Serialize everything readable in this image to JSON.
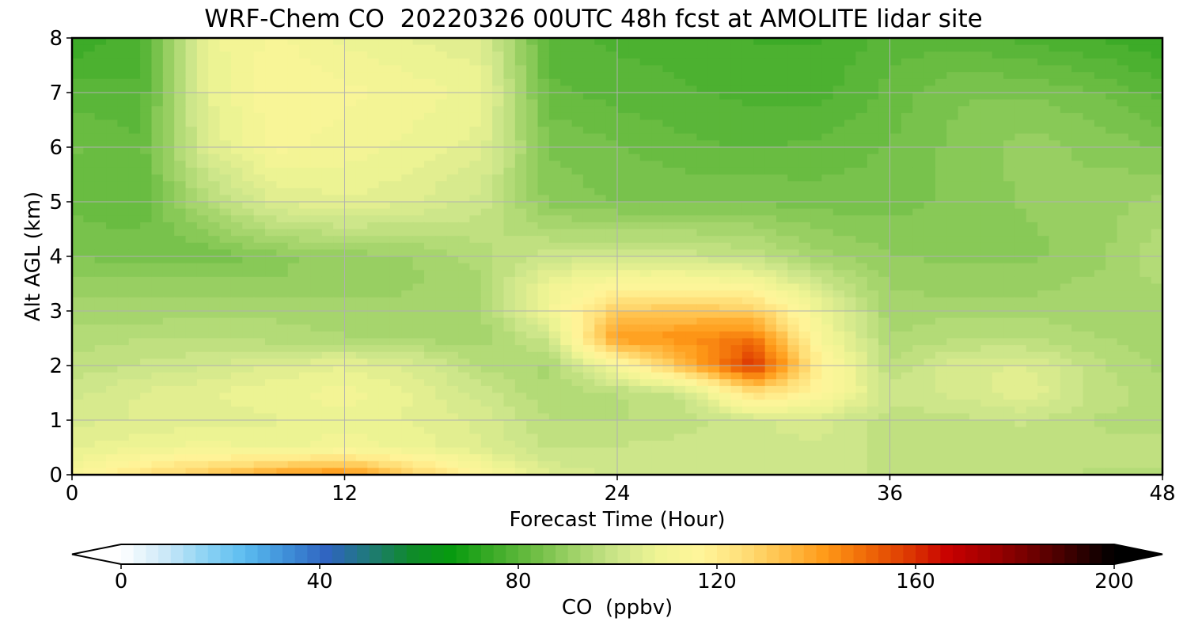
{
  "chart_data": {
    "type": "heatmap",
    "title": "WRF-Chem CO  20220326 00UTC 48h fcst at AMOLITE lidar site",
    "xlabel": "Forecast Time (Hour)",
    "ylabel": "Alt AGL (km)",
    "xlim": [
      0,
      48
    ],
    "ylim": [
      0,
      8
    ],
    "x_ticks": [
      "0",
      "12",
      "24",
      "36",
      "48"
    ],
    "y_ticks": [
      "0",
      "1",
      "2",
      "3",
      "4",
      "5",
      "6",
      "7",
      "8"
    ],
    "grid": true,
    "colorbar": {
      "label": "CO  (ppbv)",
      "range": [
        0,
        200
      ],
      "ticks": [
        "0",
        "40",
        "80",
        "120",
        "160",
        "200"
      ],
      "extend": "both",
      "colors": [
        "#ffffff",
        "#cfeaf8",
        "#8fd4f4",
        "#5bbcf0",
        "#3f8fd8",
        "#2f63c0",
        "#1f7a78",
        "#0f8a2a",
        "#079b0f",
        "#3dab28",
        "#6ebe44",
        "#a2d36a",
        "#cde68a",
        "#f0f494",
        "#fff59a",
        "#ffe07a",
        "#ffc04a",
        "#ff9a18",
        "#f06a08",
        "#dd3a02",
        "#c80000",
        "#a00000",
        "#700000",
        "#380000",
        "#000000"
      ]
    },
    "x": [
      0,
      3,
      6,
      9,
      12,
      15,
      18,
      21,
      24,
      27,
      30,
      33,
      36,
      39,
      42,
      45,
      48
    ],
    "y": [
      0,
      0.5,
      1,
      1.5,
      2,
      2.5,
      3,
      3.5,
      4,
      5,
      6,
      7,
      8
    ],
    "z_ppbv": [
      [
        112,
        124,
        132,
        140,
        144,
        130,
        115,
        104,
        100,
        100,
        100,
        100,
        98,
        98,
        97,
        96,
        96
      ],
      [
        106,
        108,
        110,
        108,
        110,
        108,
        104,
        98,
        99,
        100,
        101,
        101,
        98,
        98,
        98,
        97,
        97
      ],
      [
        103,
        104,
        105,
        106,
        108,
        106,
        103,
        96,
        96,
        97,
        101,
        102,
        97,
        98,
        99,
        96,
        95
      ],
      [
        100,
        104,
        106,
        108,
        110,
        106,
        100,
        94,
        96,
        100,
        125,
        116,
        100,
        102,
        106,
        98,
        95
      ],
      [
        97,
        99,
        101,
        104,
        106,
        103,
        96,
        93,
        112,
        135,
        160,
        118,
        96,
        103,
        104,
        97,
        93
      ],
      [
        95,
        96,
        96,
        95,
        94,
        93,
        92,
        100,
        142,
        143,
        148,
        112,
        94,
        96,
        96,
        94,
        92
      ],
      [
        92,
        92,
        93,
        93,
        92,
        92,
        93,
        110,
        130,
        132,
        130,
        108,
        92,
        93,
        93,
        92,
        92
      ],
      [
        90,
        90,
        90,
        89,
        90,
        91,
        93,
        108,
        114,
        114,
        112,
        100,
        91,
        90,
        90,
        92,
        94
      ],
      [
        86,
        85,
        84,
        88,
        90,
        91,
        95,
        100,
        100,
        100,
        98,
        92,
        89,
        88,
        88,
        90,
        96
      ],
      [
        83,
        82,
        95,
        104,
        106,
        104,
        100,
        88,
        86,
        86,
        86,
        85,
        85,
        87,
        89,
        90,
        92
      ],
      [
        84,
        82,
        104,
        112,
        110,
        108,
        105,
        86,
        84,
        82,
        81,
        82,
        84,
        87,
        90,
        88,
        86
      ],
      [
        80,
        79,
        106,
        114,
        112,
        110,
        108,
        82,
        80,
        79,
        78,
        78,
        82,
        86,
        86,
        84,
        80
      ],
      [
        74,
        78,
        108,
        112,
        108,
        106,
        104,
        80,
        78,
        78,
        76,
        76,
        80,
        80,
        78,
        76,
        74
      ]
    ]
  }
}
